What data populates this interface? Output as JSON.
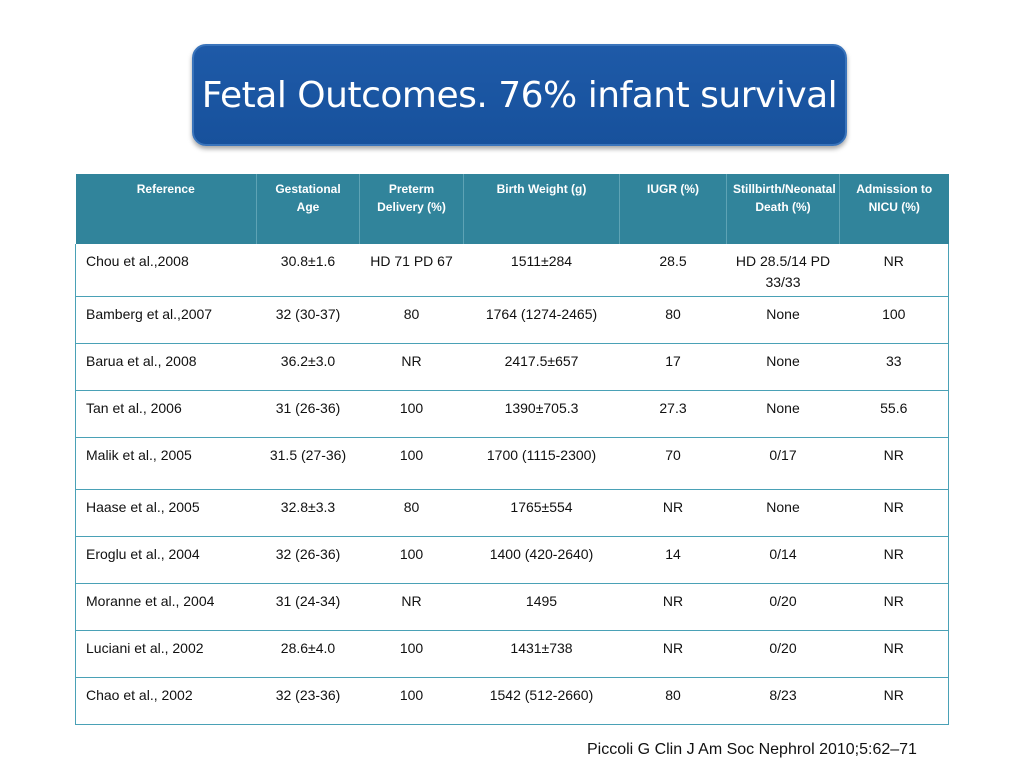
{
  "title": "Fetal Outcomes. 76% infant survival",
  "colors": {
    "title_bg": "#1e5aa8",
    "header_bg": "#31849b",
    "grid": "#4aa1b6"
  },
  "table": {
    "headers": [
      "Reference",
      "Gestational Age",
      "Preterm Delivery (%)",
      "Birth Weight (g)",
      "IUGR (%)",
      "Stillbirth/Neonatal Death (%)",
      "Admission to NICU (%)"
    ],
    "rows": [
      [
        "Chou et al.,2008",
        "30.8±1.6",
        "HD 71 PD 67",
        "1511±284",
        "28.5",
        "HD 28.5/14 PD 33/33",
        "NR"
      ],
      [
        "Bamberg et al.,2007",
        "32 (30-37)",
        "80",
        "1764 (1274-2465)",
        "80",
        "None",
        "100"
      ],
      [
        "Barua et al., 2008",
        "36.2±3.0",
        "NR",
        "2417.5±657",
        "17",
        "None",
        "33"
      ],
      [
        "Tan et al., 2006",
        "31 (26-36)",
        "100",
        "1390±705.3",
        "27.3",
        "None",
        "55.6"
      ],
      [
        "Malik et al., 2005",
        "31.5 (27-36)",
        "100",
        "1700 (1115-2300)",
        "70",
        "0/17",
        "NR"
      ],
      [
        "Haase et al., 2005",
        "32.8±3.3",
        "80",
        "1765±554",
        "NR",
        "None",
        "NR"
      ],
      [
        "Eroglu et al., 2004",
        "32 (26-36)",
        "100",
        "1400 (420-2640)",
        "14",
        "0/14",
        "NR"
      ],
      [
        "Moranne et al., 2004",
        "31 (24-34)",
        "NR",
        "1495",
        "NR",
        "0/20",
        "NR"
      ],
      [
        "Luciani et al., 2002",
        "28.6±4.0",
        "100",
        "1431±738",
        "NR",
        "0/20",
        "NR"
      ],
      [
        "Chao et al., 2002",
        "32 (23-36)",
        "100",
        "1542 (512-2660)",
        "80",
        "8/23",
        "NR"
      ]
    ]
  },
  "citation": "Piccoli G Clin J Am Soc Nephrol 2010;5:62–71"
}
